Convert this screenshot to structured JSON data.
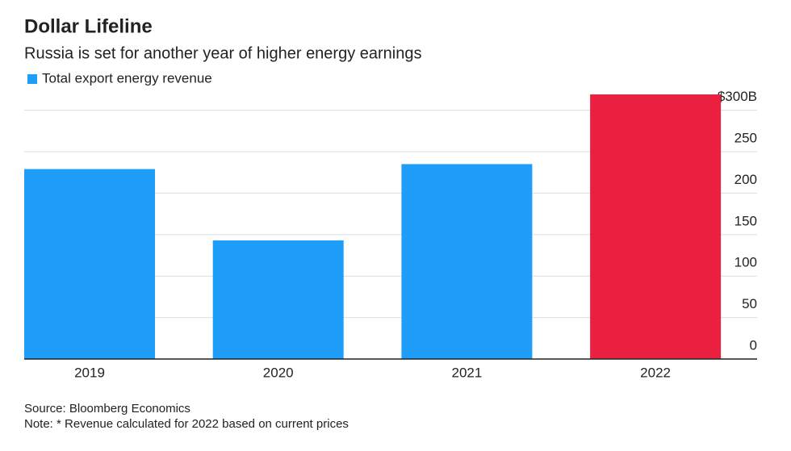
{
  "chart_data": {
    "type": "bar",
    "title": "Dollar Lifeline",
    "subtitle": "Russia is set for another year of higher energy earnings",
    "categories": [
      "2019",
      "2020",
      "2021",
      "2022"
    ],
    "series": [
      {
        "name": "Total export energy revenue",
        "color": "#1e9ef8",
        "values": [
          229,
          143,
          235,
          319
        ]
      }
    ],
    "colors": [
      "#1e9ef8",
      "#1e9ef8",
      "#1e9ef8",
      "#eb2040"
    ],
    "ylim": [
      0,
      320
    ],
    "yticks": [
      0,
      50,
      100,
      150,
      200,
      250,
      {
        "value": 300,
        "label": "$300B"
      }
    ],
    "grid": true,
    "source": "Source: Bloomberg Economics",
    "note": "Note: * Revenue calculated for 2022 based on current prices"
  }
}
